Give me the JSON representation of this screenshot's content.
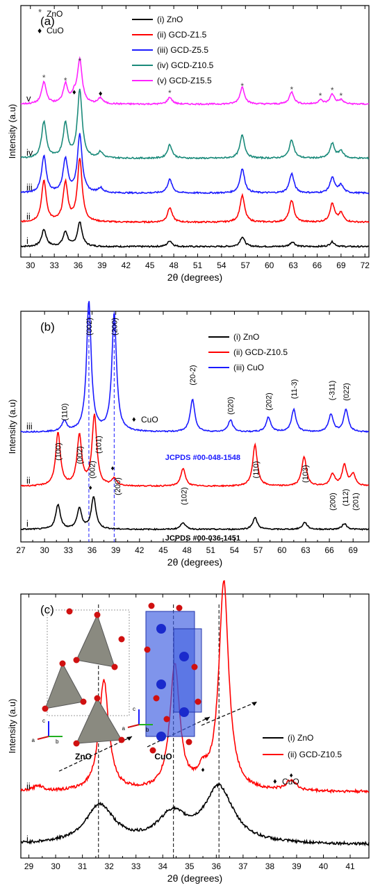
{
  "chart_data": [
    {
      "type": "line",
      "panel_label": "(a)",
      "xlabel": "2θ (degrees)",
      "ylabel": "Intensity (a.u)",
      "xlim": [
        28.8,
        72.5
      ],
      "xticks": [
        30,
        33,
        36,
        39,
        42,
        45,
        48,
        51,
        54,
        57,
        60,
        63,
        66,
        69,
        72
      ],
      "markers_legend": [
        {
          "symbol": "*",
          "label": "ZnO"
        },
        {
          "symbol": "♦",
          "label": "CuO"
        }
      ],
      "legend_position": "top",
      "series": [
        {
          "name": "(i) ZnO",
          "trace_label": "i",
          "color": "#000000",
          "peaks": [
            [
              31.7,
              0.35
            ],
            [
              34.4,
              0.3
            ],
            [
              36.2,
              0.5
            ],
            [
              47.5,
              0.12
            ],
            [
              56.6,
              0.2
            ],
            [
              62.9,
              0.1
            ],
            [
              67.9,
              0.1
            ]
          ]
        },
        {
          "name": "(ii) GCD-Z1.5",
          "trace_label": "ii",
          "color": "#ff0000",
          "peaks": [
            [
              31.7,
              0.85
            ],
            [
              34.4,
              0.8
            ],
            [
              36.2,
              1.3
            ],
            [
              47.5,
              0.3
            ],
            [
              56.6,
              0.55
            ],
            [
              62.8,
              0.45
            ],
            [
              67.9,
              0.38
            ],
            [
              69.0,
              0.18
            ]
          ]
        },
        {
          "name": "(iii) GCD-Z5.5",
          "trace_label": "iii",
          "color": "#1a1aff",
          "peaks": [
            [
              31.7,
              0.75
            ],
            [
              34.4,
              0.7
            ],
            [
              36.2,
              1.2
            ],
            [
              38.8,
              0.1
            ],
            [
              47.5,
              0.28
            ],
            [
              56.6,
              0.5
            ],
            [
              62.8,
              0.4
            ],
            [
              67.9,
              0.32
            ],
            [
              69.0,
              0.16
            ]
          ]
        },
        {
          "name": "(iv) GCD-Z10.5",
          "trace_label": "iv",
          "color": "#1a8a7a",
          "peaks": [
            [
              31.7,
              0.75
            ],
            [
              34.4,
              0.7
            ],
            [
              36.2,
              1.4
            ],
            [
              38.8,
              0.12
            ],
            [
              47.5,
              0.28
            ],
            [
              56.6,
              0.48
            ],
            [
              62.8,
              0.38
            ],
            [
              67.9,
              0.3
            ],
            [
              69.0,
              0.15
            ]
          ]
        },
        {
          "name": "(v) GCD-Z15.5",
          "trace_label": "v",
          "color": "#ff22ff",
          "peaks": [
            [
              31.7,
              0.45
            ],
            [
              34.4,
              0.4
            ],
            [
              35.5,
              0.15
            ],
            [
              36.2,
              0.9
            ],
            [
              38.8,
              0.12
            ],
            [
              47.5,
              0.14
            ],
            [
              56.6,
              0.35
            ],
            [
              62.8,
              0.25
            ],
            [
              66.4,
              0.08
            ],
            [
              67.9,
              0.2
            ],
            [
              69.0,
              0.08
            ]
          ]
        }
      ]
    },
    {
      "type": "line",
      "panel_label": "(b)",
      "xlabel": "2θ (degrees)",
      "ylabel": "Intensity (a.u)",
      "xlim": [
        27,
        71
      ],
      "xticks": [
        27,
        30,
        33,
        36,
        39,
        42,
        45,
        48,
        51,
        54,
        57,
        60,
        63,
        66,
        69
      ],
      "markers_legend": [
        {
          "symbol": "♦",
          "label": "CuO"
        }
      ],
      "legend_position": "top-right",
      "reference_lines_x": [
        35.6,
        38.8
      ],
      "references": [
        "JCPDS #00-048-1548",
        "JCPDS #00-036-1451"
      ],
      "series": [
        {
          "name": "(i) ZnO",
          "trace_label": "i",
          "color": "#000000",
          "peaks": [
            [
              31.7,
              0.42
            ],
            [
              34.4,
              0.35
            ],
            [
              36.2,
              0.55
            ],
            [
              47.5,
              0.12
            ],
            [
              56.6,
              0.2
            ],
            [
              62.9,
              0.12
            ],
            [
              67.9,
              0.1
            ]
          ]
        },
        {
          "name": "(ii) GCD-Z10.5",
          "trace_label": "ii",
          "color": "#ff0000",
          "peaks": [
            [
              31.7,
              0.9
            ],
            [
              34.4,
              0.85
            ],
            [
              36.3,
              1.2
            ],
            [
              38.8,
              0.12
            ],
            [
              47.5,
              0.3
            ],
            [
              56.6,
              0.7
            ],
            [
              62.8,
              0.5
            ],
            [
              66.4,
              0.2
            ],
            [
              67.9,
              0.35
            ],
            [
              69.0,
              0.2
            ]
          ]
        },
        {
          "name": "(iii) CuO",
          "trace_label": "iii",
          "color": "#1a1aff",
          "peaks": [
            [
              32.5,
              0.18
            ],
            [
              35.6,
              2.2
            ],
            [
              38.8,
              2.0
            ],
            [
              48.7,
              0.55
            ],
            [
              53.5,
              0.2
            ],
            [
              58.3,
              0.25
            ],
            [
              61.5,
              0.38
            ],
            [
              66.2,
              0.3
            ],
            [
              68.1,
              0.38
            ]
          ]
        }
      ],
      "annotations": {
        "cuo": [
          "(110)",
          "(002)",
          "(200)",
          "(20-2)",
          "(020)",
          "(202)",
          "(11-3)",
          "(-311)",
          "(022)"
        ],
        "zno": [
          "(100)",
          "(002)",
          "(101)",
          "(002)",
          "(200)",
          "(102)",
          "(110)",
          "(103)",
          "(200)",
          "(112)",
          "(201)"
        ]
      }
    },
    {
      "type": "line",
      "panel_label": "(c)",
      "xlabel": "2θ (degrees)",
      "ylabel": "Intensity (a.u)",
      "xlim": [
        28.7,
        41.7
      ],
      "xticks": [
        29,
        30,
        31,
        32,
        33,
        34,
        35,
        36,
        37,
        38,
        39,
        40,
        41
      ],
      "markers_legend": [
        {
          "symbol": "♦",
          "label": "CuO"
        }
      ],
      "legend_position": "right",
      "reference_lines_x": [
        31.6,
        34.4,
        36.1
      ],
      "insets": [
        "ZnO",
        "CuO"
      ],
      "series": [
        {
          "name": "(i) ZnO",
          "trace_label": "i",
          "color": "#000000",
          "peaks": [
            [
              31.65,
              0.55
            ],
            [
              34.35,
              0.4
            ],
            [
              36.1,
              0.8
            ]
          ]
        },
        {
          "name": "(ii) GCD-Z10.5",
          "trace_label": "ii",
          "color": "#ff0000",
          "peaks": [
            [
              29.35,
              0.08
            ],
            [
              31.8,
              1.6
            ],
            [
              34.45,
              1.8
            ],
            [
              35.5,
              0.2
            ],
            [
              36.28,
              3.0
            ],
            [
              38.8,
              0.15
            ]
          ]
        }
      ]
    }
  ],
  "labels": {
    "a": {
      "zno_marker": "ZnO",
      "cuo_marker": "CuO"
    },
    "b": {
      "ref1": "JCPDS #00-048-1548",
      "ref2": "JCPDS #00-036-1451",
      "cuo_marker": "CuO"
    },
    "c": {
      "inset_zno": "ZnO",
      "inset_cuo": "CuO",
      "cuo_marker": "CuO",
      "axis_a": "a",
      "axis_b": "b",
      "axis_c": "c"
    }
  }
}
